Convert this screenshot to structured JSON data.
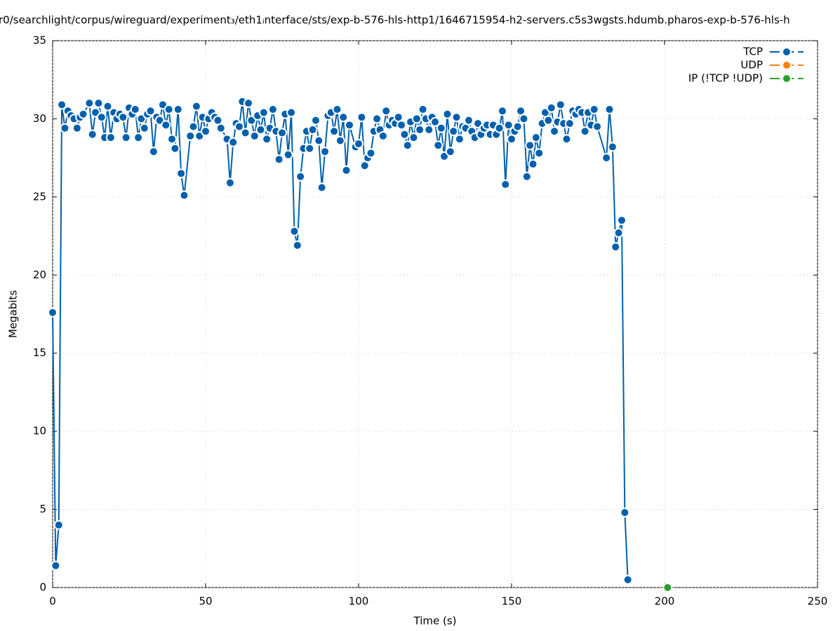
{
  "chart_data": {
    "type": "line",
    "title": "r0/searchlight/corpus/wireguard/experiment₃/eth1ᵢnterface/sts/exp-b-576-hls-http1/1646715954-h2-servers.c5s3wgsts.hdumb.pharos-exp-b-576-hls-h",
    "x_label": "Time (s)",
    "y_label": "Megabits",
    "xlim": [
      0,
      250
    ],
    "xticks": [
      0,
      50,
      100,
      150,
      200,
      250
    ],
    "ylim": [
      0,
      35
    ],
    "yticks": [
      0,
      5,
      10,
      15,
      20,
      25,
      30,
      35
    ],
    "grid": true,
    "legend": "top-right",
    "series": [
      {
        "name": "TCP",
        "color": "#0060ad",
        "x": [
          0,
          1,
          2,
          3,
          4,
          5,
          6,
          7,
          8,
          9,
          10,
          12,
          13,
          14,
          15,
          16,
          17,
          18,
          19,
          20,
          21,
          22,
          23,
          24,
          25,
          26,
          27,
          28,
          29,
          30,
          31,
          32,
          33,
          34,
          35,
          36,
          37,
          38,
          39,
          40,
          41,
          42,
          43,
          45,
          46,
          47,
          48,
          49,
          50,
          51,
          52,
          53,
          54,
          55,
          57,
          58,
          59,
          60,
          61,
          62,
          63,
          64,
          65,
          66,
          67,
          68,
          69,
          70,
          71,
          72,
          73,
          74,
          75,
          76,
          77,
          78,
          79,
          80,
          81,
          82,
          83,
          84,
          85,
          86,
          87,
          88,
          89,
          90,
          91,
          92,
          93,
          94,
          95,
          96,
          97,
          99,
          100,
          101,
          102,
          103,
          104,
          105,
          106,
          107,
          108,
          109,
          110,
          111,
          112,
          113,
          114,
          115,
          116,
          117,
          118,
          119,
          120,
          121,
          122,
          123,
          124,
          125,
          126,
          127,
          128,
          129,
          130,
          131,
          132,
          133,
          134,
          135,
          136,
          137,
          138,
          139,
          140,
          141,
          142,
          143,
          144,
          145,
          146,
          147,
          148,
          149,
          150,
          151,
          152,
          153,
          154,
          155,
          156,
          157,
          158,
          159,
          160,
          161,
          162,
          163,
          164,
          165,
          166,
          167,
          168,
          169,
          170,
          171,
          172,
          173,
          174,
          175,
          176,
          177,
          178,
          181,
          182,
          183,
          184,
          185,
          186,
          187,
          188
        ],
        "values": [
          17.6,
          1.4,
          4.0,
          30.9,
          29.4,
          30.5,
          30.2,
          30.0,
          29.4,
          30.1,
          30.3,
          31.0,
          29.0,
          30.4,
          31.0,
          30.1,
          28.8,
          30.8,
          28.8,
          30.4,
          30.0,
          30.3,
          30.1,
          28.8,
          30.7,
          30.3,
          30.6,
          28.8,
          30.0,
          29.4,
          30.3,
          30.5,
          27.9,
          30.1,
          29.9,
          30.9,
          29.6,
          30.6,
          28.7,
          28.1,
          30.6,
          26.5,
          25.1,
          28.9,
          29.5,
          30.8,
          28.9,
          30.1,
          29.2,
          30.0,
          30.4,
          30.1,
          29.9,
          29.4,
          28.7,
          25.9,
          28.5,
          29.7,
          29.5,
          31.1,
          29.1,
          31.0,
          29.9,
          28.9,
          30.2,
          29.3,
          30.4,
          28.7,
          29.4,
          30.6,
          29.2,
          27.4,
          29.1,
          30.3,
          27.7,
          30.4,
          22.8,
          21.9,
          26.3,
          28.1,
          29.2,
          28.1,
          29.3,
          29.9,
          28.6,
          25.6,
          27.9,
          30.2,
          30.4,
          29.2,
          30.6,
          28.6,
          30.1,
          26.7,
          29.6,
          28.2,
          28.4,
          30.1,
          27.0,
          27.5,
          27.8,
          29.2,
          30.0,
          29.3,
          28.9,
          30.5,
          29.6,
          29.9,
          29.7,
          30.1,
          29.6,
          29.0,
          28.3,
          29.8,
          28.8,
          30.0,
          29.3,
          30.6,
          30.0,
          29.3,
          30.1,
          29.8,
          28.3,
          29.4,
          27.6,
          30.3,
          27.9,
          29.2,
          30.1,
          28.7,
          29.5,
          29.4,
          29.9,
          29.2,
          28.8,
          29.7,
          29.0,
          29.4,
          29.6,
          29.0,
          29.6,
          29.0,
          29.4,
          30.5,
          25.8,
          29.6,
          28.7,
          29.2,
          29.5,
          30.5,
          30.0,
          26.3,
          28.3,
          27.1,
          28.8,
          27.8,
          29.7,
          30.4,
          29.9,
          30.7,
          29.2,
          29.8,
          30.9,
          29.7,
          28.7,
          29.7,
          30.5,
          30.3,
          30.6,
          30.4,
          29.2,
          30.4,
          29.6,
          30.6,
          29.5,
          27.5,
          30.6,
          28.2,
          21.8,
          22.7,
          23.5,
          4.8,
          0.5
        ]
      },
      {
        "name": "UDP",
        "color": "#ff7f0e",
        "x": [],
        "values": []
      },
      {
        "name": "IP (!TCP  !UDP)",
        "color": "#2ca02c",
        "x": [
          201
        ],
        "values": [
          0
        ]
      }
    ]
  }
}
